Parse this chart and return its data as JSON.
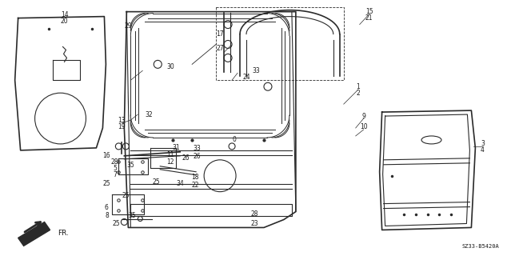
{
  "diagram_code": "SZ33-B5420A",
  "bg_color": "#ffffff",
  "line_color": "#2a2a2a",
  "text_color": "#1a1a1a",
  "fig_width": 6.34,
  "fig_height": 3.2,
  "dpi": 100,
  "fr_label": "FR."
}
